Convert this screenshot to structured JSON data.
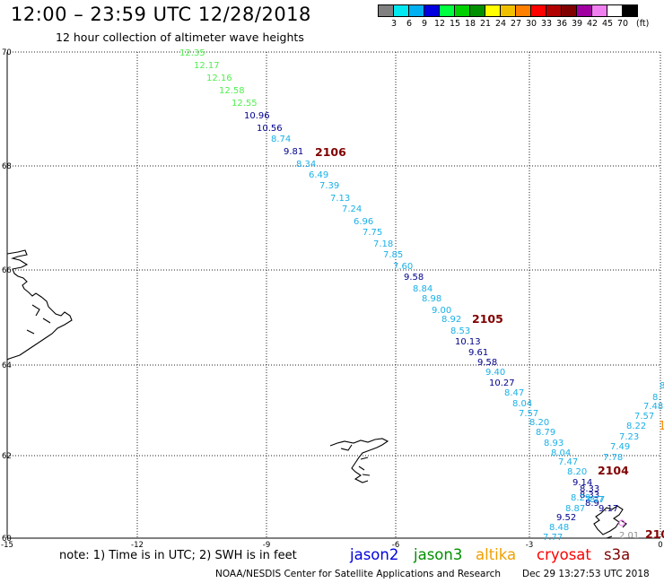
{
  "header": {
    "title": "12:00 – 23:59 UTC 12/28/2018",
    "subtitle": "12 hour collection of altimeter wave heights"
  },
  "legend": {
    "colors": [
      "#808080",
      "#00e8f0",
      "#00b0f0",
      "#0000e0",
      "#00ff40",
      "#00d000",
      "#009000",
      "#ffff00",
      "#f0c000",
      "#ff8000",
      "#ff0000",
      "#b00000",
      "#800000",
      "#a000a0",
      "#f080f0",
      "#ffffff",
      "#000000"
    ],
    "labels": [
      "3",
      "6",
      "9",
      "12",
      "15",
      "18",
      "21",
      "24",
      "27",
      "30",
      "33",
      "36",
      "39",
      "42",
      "45",
      "70"
    ],
    "unit": "(ft)"
  },
  "map": {
    "lat_labels": [
      "70",
      "68",
      "66",
      "64",
      "62",
      "60"
    ],
    "lon_labels": [
      "-15",
      "-12",
      "-9",
      "-6",
      "-3",
      "0"
    ],
    "colors": {
      "cyan": "#1ab0e8",
      "green": "#50f050",
      "navy": "#00008c",
      "track": "#800000",
      "gray": "#909090",
      "orange": "#ff8c00",
      "pink": "#f080f0"
    },
    "track_labels": [
      "2106",
      "2105",
      "2104",
      "210"
    ],
    "edge_marks": [
      "8",
      "8.",
      "7.48",
      "7.57",
      "1"
    ],
    "track_a": [
      "12.35",
      "12.17",
      "12.16",
      "12.58",
      "12.55",
      "10.96",
      "10.56",
      "8.74",
      "9.81",
      "8.34",
      "6.49",
      "7.39",
      "7.13",
      "7.24",
      "6.96",
      "7.75",
      "7.18",
      "7.85",
      "7.60",
      "9.58",
      "8.84",
      "8.98",
      "9.00",
      "8.92",
      "8.53",
      "10.13",
      "9.61",
      "9.58",
      "9.40",
      "10.27",
      "8.47",
      "8.04",
      "7.57",
      "8.20",
      "8.79",
      "8.93",
      "8.04",
      "7.47",
      "8.20",
      "9.14",
      "8.33",
      "8.33",
      "8.29",
      "8.87",
      "9.52",
      "8.48",
      "7.77"
    ],
    "track_b": [
      "7.57",
      "8.22",
      "7.23",
      "7.49",
      "7.78",
      "8.9",
      "8.7",
      "7.77",
      "9.17",
      "2.01"
    ]
  },
  "note": "note: 1) Time is in UTC; 2) SWH is in feet",
  "satellites": [
    {
      "name": "jason2",
      "color": "#0000e0"
    },
    {
      "name": "jason3",
      "color": "#009000"
    },
    {
      "name": "altika",
      "color": "#f0a000"
    },
    {
      "name": "cryosat",
      "color": "#ff0000"
    },
    {
      "name": "s3a",
      "color": "#800000"
    }
  ],
  "footer": {
    "left": "NOAA/NESDIS Center for Satellite Applications and Research",
    "right": "Dec 29 13:27:53 UTC 2018"
  }
}
